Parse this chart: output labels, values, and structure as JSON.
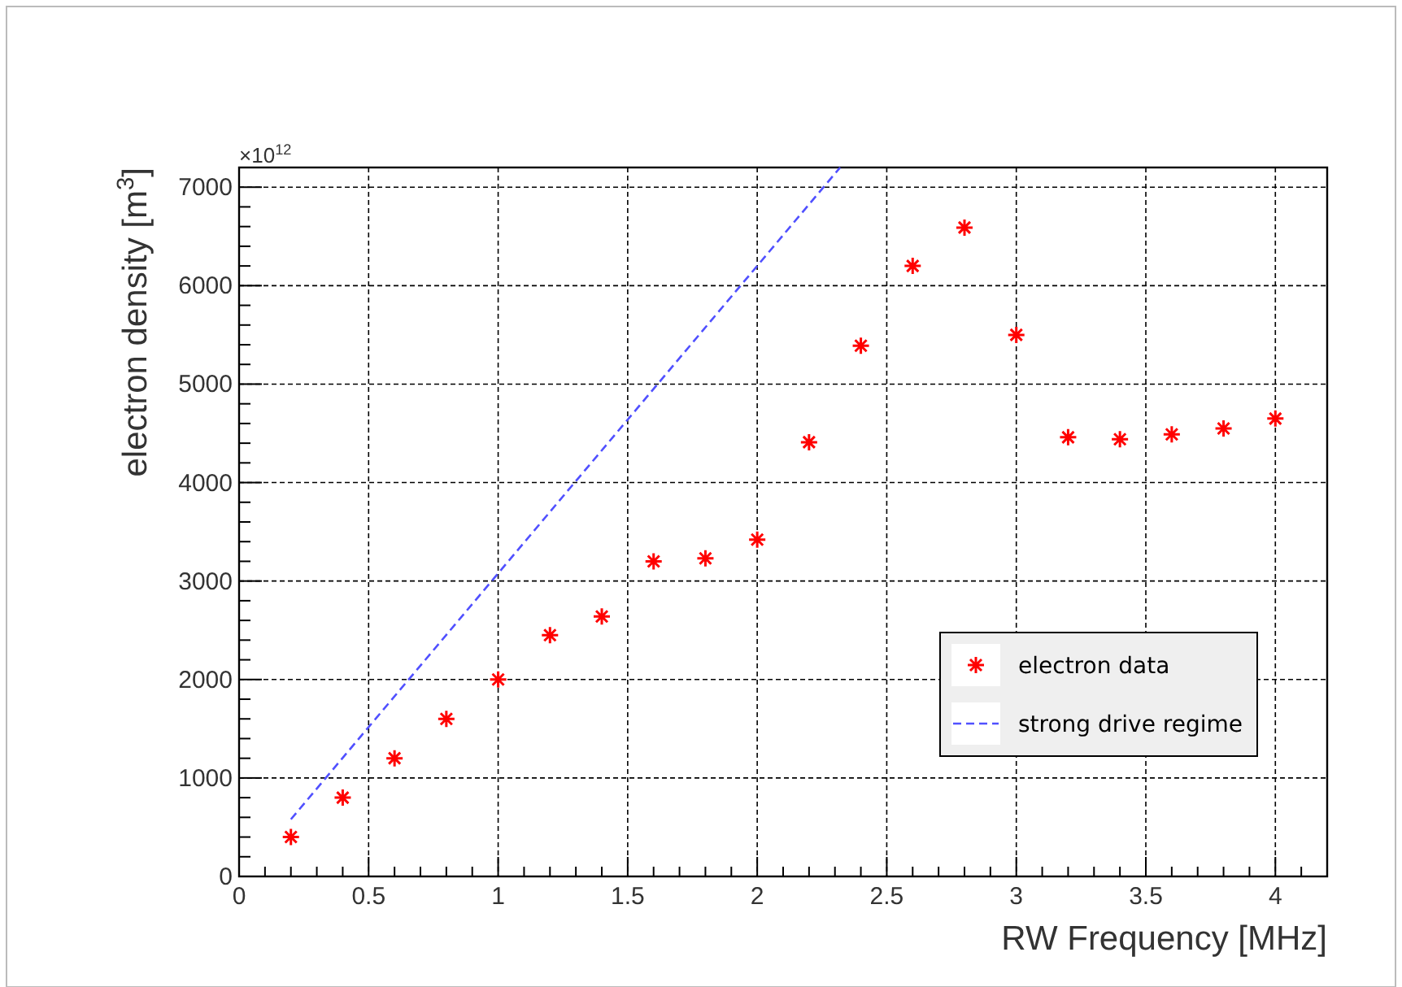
{
  "chart_data": {
    "type": "scatter",
    "xlabel": "RW Frequency [MHz]",
    "ylabel": "electron density [m$^{3}$]",
    "annotations": [
      "×10$^{12}$"
    ],
    "xlim": [
      0,
      4.2
    ],
    "ylim": [
      0,
      7200
    ],
    "xticks": [
      0,
      0.5,
      1,
      1.5,
      2,
      2.5,
      3,
      3.5,
      4
    ],
    "yticks": [
      0,
      1000,
      2000,
      3000,
      4000,
      5000,
      6000,
      7000
    ],
    "grid": true,
    "legend": "bottom right",
    "series": [
      {
        "name": "electron data",
        "color": "#ff0000",
        "marker": "cross",
        "x": [
          0.2,
          0.4,
          0.6,
          0.8,
          1.0,
          1.2,
          1.4,
          1.6,
          1.8,
          2.0,
          2.2,
          2.4,
          2.6,
          2.8,
          3.0,
          3.2,
          3.4,
          3.6,
          3.8,
          4.0
        ],
        "values": [
          400,
          800,
          1200,
          1600,
          2000,
          2450,
          2640,
          3200,
          3230,
          3420,
          4410,
          5390,
          6200,
          6590,
          5500,
          4460,
          4440,
          4490,
          4550,
          4650
        ]
      },
      {
        "name": "strong drive regime",
        "type": "line",
        "color": "#5050ff",
        "line_style": "dashed",
        "marker": "none",
        "x": [
          0.2,
          2.32
        ],
        "values": [
          580,
          7200
        ]
      }
    ]
  }
}
